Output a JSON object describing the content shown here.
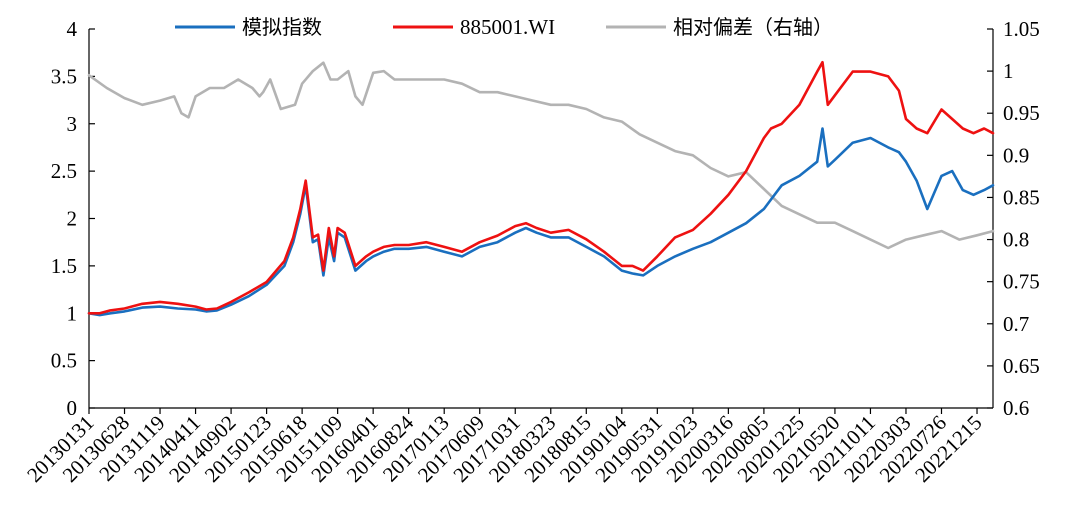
{
  "chart_data": {
    "type": "line",
    "title": "",
    "xlabel": "",
    "ylabel": "",
    "y2label": "",
    "legend_position": "top",
    "grid": false,
    "ylim": [
      0,
      4
    ],
    "yticks": [
      "0",
      "0.5",
      "1",
      "1.5",
      "2",
      "2.5",
      "3",
      "3.5",
      "4"
    ],
    "y2lim": [
      0.6,
      1.05
    ],
    "y2ticks": [
      "0.6",
      "0.65",
      "0.7",
      "0.75",
      "0.8",
      "0.85",
      "0.9",
      "0.95",
      "1",
      "1.05"
    ],
    "x_tick_labels": [
      "20130131",
      "20130628",
      "20131119",
      "20140411",
      "20140902",
      "20150123",
      "20150618",
      "20151109",
      "20160401",
      "20160824",
      "20170113",
      "20170609",
      "20171031",
      "20180323",
      "20180815",
      "20190104",
      "20190531",
      "20191023",
      "20200316",
      "20200805",
      "20201225",
      "20210520",
      "20211011",
      "20220303",
      "20220726",
      "20221215"
    ],
    "x_range": [
      0,
      25.45
    ],
    "series": [
      {
        "name": "模拟指数",
        "axis": "left",
        "color": "#1a6fbf",
        "x": [
          0,
          0.3,
          0.6,
          1.0,
          1.5,
          2.0,
          2.5,
          3.0,
          3.3,
          3.6,
          4.0,
          4.5,
          5.0,
          5.5,
          5.75,
          5.95,
          6.1,
          6.3,
          6.45,
          6.6,
          6.75,
          6.9,
          7.0,
          7.2,
          7.5,
          7.8,
          8.0,
          8.3,
          8.6,
          9.0,
          9.5,
          10.0,
          10.5,
          11.0,
          11.5,
          12.0,
          12.3,
          12.6,
          13.0,
          13.5,
          14.0,
          14.5,
          15.0,
          15.3,
          15.6,
          16.0,
          16.5,
          17.0,
          17.5,
          18.0,
          18.5,
          19.0,
          19.2,
          19.5,
          20.0,
          20.5,
          20.65,
          20.8,
          21.0,
          21.5,
          22.0,
          22.5,
          22.8,
          23.0,
          23.3,
          23.6,
          24.0,
          24.3,
          24.6,
          24.9,
          25.2,
          25.45
        ],
        "values": [
          1.0,
          0.98,
          1.0,
          1.02,
          1.06,
          1.07,
          1.05,
          1.04,
          1.02,
          1.03,
          1.09,
          1.18,
          1.3,
          1.5,
          1.75,
          2.05,
          2.35,
          1.75,
          1.78,
          1.4,
          1.8,
          1.55,
          1.85,
          1.8,
          1.45,
          1.55,
          1.6,
          1.65,
          1.68,
          1.68,
          1.7,
          1.65,
          1.6,
          1.7,
          1.75,
          1.85,
          1.9,
          1.85,
          1.8,
          1.8,
          1.7,
          1.6,
          1.45,
          1.42,
          1.4,
          1.5,
          1.6,
          1.68,
          1.75,
          1.85,
          1.95,
          2.1,
          2.2,
          2.35,
          2.45,
          2.6,
          2.95,
          2.55,
          2.62,
          2.8,
          2.85,
          2.75,
          2.7,
          2.6,
          2.4,
          2.1,
          2.45,
          2.5,
          2.3,
          2.25,
          2.3,
          2.35
        ]
      },
      {
        "name": "885001.WI",
        "axis": "left",
        "color": "#ee1111",
        "x": [
          0,
          0.3,
          0.6,
          1.0,
          1.5,
          2.0,
          2.5,
          3.0,
          3.3,
          3.6,
          4.0,
          4.5,
          5.0,
          5.5,
          5.75,
          5.95,
          6.1,
          6.3,
          6.45,
          6.6,
          6.75,
          6.9,
          7.0,
          7.2,
          7.5,
          7.8,
          8.0,
          8.3,
          8.6,
          9.0,
          9.5,
          10.0,
          10.5,
          11.0,
          11.5,
          12.0,
          12.3,
          12.6,
          13.0,
          13.5,
          14.0,
          14.5,
          15.0,
          15.3,
          15.6,
          16.0,
          16.5,
          17.0,
          17.5,
          18.0,
          18.5,
          19.0,
          19.2,
          19.5,
          20.0,
          20.5,
          20.65,
          20.8,
          21.0,
          21.5,
          22.0,
          22.5,
          22.8,
          23.0,
          23.3,
          23.6,
          24.0,
          24.3,
          24.6,
          24.9,
          25.2,
          25.45
        ],
        "values": [
          1.0,
          1.0,
          1.03,
          1.05,
          1.1,
          1.12,
          1.1,
          1.07,
          1.04,
          1.05,
          1.12,
          1.22,
          1.33,
          1.55,
          1.8,
          2.1,
          2.4,
          1.8,
          1.83,
          1.45,
          1.9,
          1.6,
          1.9,
          1.85,
          1.5,
          1.6,
          1.65,
          1.7,
          1.72,
          1.72,
          1.75,
          1.7,
          1.65,
          1.75,
          1.82,
          1.92,
          1.95,
          1.9,
          1.85,
          1.88,
          1.78,
          1.65,
          1.5,
          1.5,
          1.45,
          1.6,
          1.8,
          1.88,
          2.05,
          2.25,
          2.5,
          2.85,
          2.95,
          3.0,
          3.2,
          3.55,
          3.65,
          3.2,
          3.3,
          3.55,
          3.55,
          3.5,
          3.35,
          3.05,
          2.95,
          2.9,
          3.15,
          3.05,
          2.95,
          2.9,
          2.95,
          2.9
        ]
      },
      {
        "name": "相对偏差（右轴）",
        "axis": "right",
        "color": "#b3b3b3",
        "x": [
          0,
          0.5,
          1.0,
          1.5,
          2.0,
          2.4,
          2.6,
          2.8,
          3.0,
          3.4,
          3.8,
          4.2,
          4.6,
          4.8,
          4.9,
          5.1,
          5.4,
          5.8,
          6.0,
          6.3,
          6.6,
          6.8,
          7.0,
          7.3,
          7.5,
          7.7,
          8.0,
          8.3,
          8.6,
          9.0,
          9.5,
          10.0,
          10.5,
          11.0,
          11.5,
          12.0,
          12.5,
          13.0,
          13.5,
          14.0,
          14.5,
          15.0,
          15.5,
          16.0,
          16.5,
          17.0,
          17.5,
          18.0,
          18.5,
          19.0,
          19.5,
          20.0,
          20.5,
          21.0,
          21.5,
          22.0,
          22.5,
          23.0,
          23.5,
          24.0,
          24.5,
          25.0,
          25.45
        ],
        "values": [
          0.995,
          0.98,
          0.968,
          0.96,
          0.965,
          0.97,
          0.95,
          0.945,
          0.97,
          0.98,
          0.98,
          0.99,
          0.98,
          0.97,
          0.975,
          0.99,
          0.955,
          0.96,
          0.985,
          1.0,
          1.01,
          0.99,
          0.99,
          1.0,
          0.97,
          0.96,
          0.998,
          1.0,
          0.99,
          0.99,
          0.99,
          0.99,
          0.985,
          0.975,
          0.975,
          0.97,
          0.965,
          0.96,
          0.96,
          0.955,
          0.945,
          0.94,
          0.925,
          0.915,
          0.905,
          0.9,
          0.885,
          0.875,
          0.88,
          0.86,
          0.84,
          0.83,
          0.82,
          0.82,
          0.81,
          0.8,
          0.79,
          0.8,
          0.805,
          0.81,
          0.8,
          0.805,
          0.81
        ]
      }
    ]
  }
}
